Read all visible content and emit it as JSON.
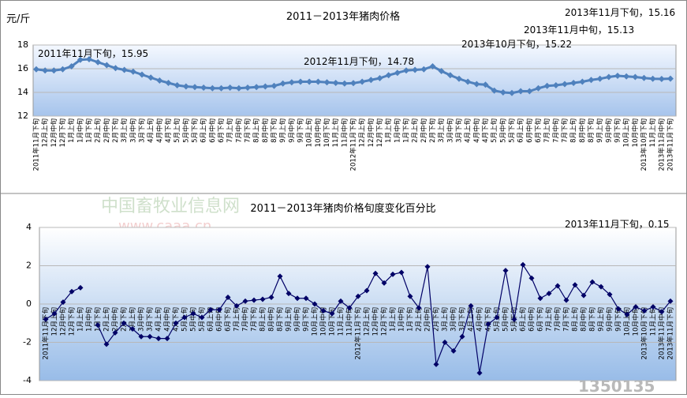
{
  "chart_data": [
    {
      "type": "line",
      "title": "2011－2013年猪肉价格",
      "y_label": "元/斤",
      "ylim": [
        12,
        18
      ],
      "yticks": [
        12,
        14,
        16,
        18
      ],
      "grid": true,
      "annotations": [
        "2011年11月下旬，15.95",
        "2012年11月下旬，14.78",
        "2013年10月下旬，15.22",
        "2013年11月中旬，15.13",
        "2013年11月下旬，15.16"
      ],
      "categories": [
        "2011年11月下旬",
        "12月上旬",
        "12月中旬",
        "12月下旬",
        "1月上旬",
        "1月中旬",
        "1月下旬",
        "2月上旬",
        "2月中旬",
        "2月下旬",
        "3月上旬",
        "3月中旬",
        "3月下旬",
        "4月上旬",
        "4月中旬",
        "4月下旬",
        "5月上旬",
        "5月中旬",
        "5月下旬",
        "6月上旬",
        "6月中旬",
        "6月下旬",
        "7月上旬",
        "7月中旬",
        "7月下旬",
        "8月上旬",
        "8月中旬",
        "8月下旬",
        "9月上旬",
        "9月中旬",
        "9月下旬",
        "10月上旬",
        "10月中旬",
        "10月下旬",
        "11月上旬",
        "11月中旬",
        "2012年11月下旬",
        "12月上旬",
        "12月中旬",
        "12月下旬",
        "1月上旬",
        "1月中旬",
        "1月下旬",
        "2月上旬",
        "2月中旬",
        "2月下旬",
        "3月上旬",
        "3月中旬",
        "3月下旬",
        "4月上旬",
        "4月中旬",
        "4月下旬",
        "5月上旬",
        "5月中旬",
        "5月下旬",
        "6月上旬",
        "6月中旬",
        "6月下旬",
        "7月上旬",
        "7月中旬",
        "7月下旬",
        "8月上旬",
        "8月中旬",
        "8月下旬",
        "9月上旬",
        "9月中旬",
        "9月下旬",
        "10月上旬",
        "10月中旬",
        "2013年10月下旬",
        "11月上旬",
        "2013年11月中旬",
        "2013年11月下旬"
      ],
      "series": [
        {
          "name": "猪肉价格",
          "color": "#4f81bd",
          "values": [
            15.95,
            15.85,
            15.85,
            15.95,
            16.2,
            16.75,
            16.8,
            16.55,
            16.3,
            16.05,
            15.9,
            15.75,
            15.5,
            15.25,
            15.0,
            14.8,
            14.6,
            14.5,
            14.45,
            14.4,
            14.35,
            14.35,
            14.4,
            14.35,
            14.4,
            14.45,
            14.5,
            14.55,
            14.75,
            14.85,
            14.9,
            14.9,
            14.9,
            14.85,
            14.8,
            14.75,
            14.78,
            14.9,
            15.05,
            15.2,
            15.45,
            15.65,
            15.85,
            15.9,
            15.95,
            16.2,
            15.8,
            15.45,
            15.15,
            14.9,
            14.7,
            14.65,
            14.15,
            14.0,
            13.95,
            14.1,
            14.1,
            14.35,
            14.55,
            14.6,
            14.7,
            14.8,
            14.9,
            15.05,
            15.15,
            15.3,
            15.4,
            15.35,
            15.3,
            15.22,
            15.15,
            15.13,
            15.16
          ]
        }
      ]
    },
    {
      "type": "line",
      "title": "2011－2013年猪肉价格旬度变化百分比",
      "ylim": [
        -4,
        4
      ],
      "yticks": [
        -4,
        -2,
        0,
        2,
        4
      ],
      "grid": true,
      "annotations": [
        "2013年11月下旬，0.15"
      ],
      "categories": [
        "2011年11月下旬",
        "12月上旬",
        "12月中旬",
        "12月下旬",
        "1月上旬",
        "1月中旬",
        "1月下旬",
        "2月上旬",
        "2月中旬",
        "2月下旬",
        "3月上旬",
        "3月中旬",
        "3月下旬",
        "4月上旬",
        "4月中旬",
        "4月下旬",
        "5月上旬",
        "5月中旬",
        "5月下旬",
        "6月上旬",
        "6月中旬",
        "6月下旬",
        "7月上旬",
        "7月中旬",
        "7月下旬",
        "8月上旬",
        "8月中旬",
        "8月下旬",
        "9月上旬",
        "9月中旬",
        "9月下旬",
        "10月上旬",
        "10月中旬",
        "10月下旬",
        "11月上旬",
        "11月中旬",
        "2012年11月下旬",
        "12月上旬",
        "12月中旬",
        "12月下旬",
        "1月上旬",
        "1月中旬",
        "1月下旬",
        "2月上旬",
        "2月中旬",
        "2月下旬",
        "3月上旬",
        "3月中旬",
        "3月下旬",
        "4月上旬",
        "4月中旬",
        "4月下旬",
        "5月上旬",
        "5月中旬",
        "5月下旬",
        "6月上旬",
        "6月中旬",
        "6月下旬",
        "7月上旬",
        "7月中旬",
        "7月下旬",
        "8月上旬",
        "8月中旬",
        "8月下旬",
        "9月上旬",
        "9月中旬",
        "9月下旬",
        "10月上旬",
        "10月中旬",
        "2013年10月下旬",
        "11月上旬",
        "2013年11月中旬",
        "2013年11月下旬"
      ],
      "series": [
        {
          "name": "旬度变化百分比",
          "color": "#000066",
          "values": [
            -0.8,
            -0.5,
            0.1,
            0.65,
            0.85,
            null,
            -1.1,
            -2.1,
            -1.5,
            -1.0,
            -1.3,
            -1.7,
            -1.7,
            -1.8,
            -1.8,
            -1.0,
            -0.7,
            -0.5,
            -0.7,
            -0.3,
            -0.3,
            0.35,
            -0.1,
            0.15,
            0.2,
            0.25,
            0.35,
            1.45,
            0.55,
            0.3,
            0.3,
            0.0,
            -0.35,
            -0.5,
            0.15,
            -0.2,
            0.4,
            0.7,
            1.6,
            1.1,
            1.55,
            1.65,
            0.4,
            -0.2,
            1.95,
            -3.15,
            -2.0,
            -2.45,
            -1.7,
            -0.1,
            -3.6,
            -1.05,
            -0.7,
            1.75,
            -0.8,
            2.05,
            1.35,
            0.3,
            0.55,
            0.95,
            0.2,
            1.0,
            0.45,
            1.15,
            0.9,
            0.5,
            -0.25,
            -0.55,
            -0.15,
            -0.35,
            -0.15,
            -0.4,
            0.15
          ]
        }
      ]
    }
  ],
  "watermark": {
    "site": "中国畜牧业信息网",
    "url": "www.caaa.cn",
    "logo": "1350135"
  }
}
